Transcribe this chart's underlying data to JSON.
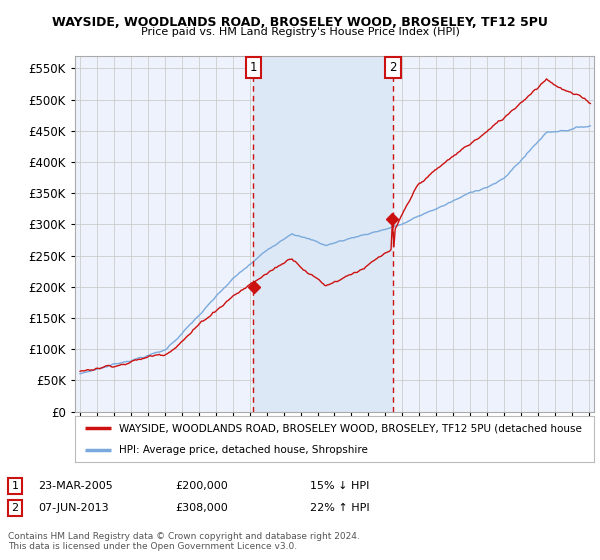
{
  "title1": "WAYSIDE, WOODLANDS ROAD, BROSELEY WOOD, BROSELEY, TF12 5PU",
  "title2": "Price paid vs. HM Land Registry's House Price Index (HPI)",
  "legend_line1": "WAYSIDE, WOODLANDS ROAD, BROSELEY WOOD, BROSELEY, TF12 5PU (detached house",
  "legend_line2": "HPI: Average price, detached house, Shropshire",
  "footnote": "Contains HM Land Registry data © Crown copyright and database right 2024.\nThis data is licensed under the Open Government Licence v3.0.",
  "sale1_date": "23-MAR-2005",
  "sale1_price": "£200,000",
  "sale1_hpi": "15% ↓ HPI",
  "sale1_year": 2005.22,
  "sale1_value": 200000,
  "sale2_date": "07-JUN-2013",
  "sale2_price": "£308,000",
  "sale2_hpi": "22% ↑ HPI",
  "sale2_year": 2013.44,
  "sale2_value": 308000,
  "hpi_color": "#7aaadd",
  "price_color": "#cc1111",
  "background_color": "#eef2fc",
  "shade_color": "#dce8f5",
  "ylim": [
    0,
    570000
  ],
  "yticks": [
    0,
    50000,
    100000,
    150000,
    200000,
    250000,
    300000,
    350000,
    400000,
    450000,
    500000,
    550000
  ],
  "xlim_start": 1994.7,
  "xlim_end": 2025.3
}
